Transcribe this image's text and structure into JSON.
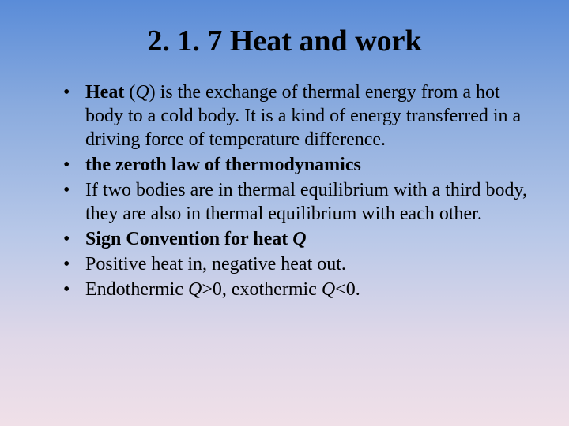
{
  "slide": {
    "title": "2. 1. 7 Heat and work",
    "bullets": [
      {
        "segments": [
          {
            "text": "Heat",
            "bold": true
          },
          {
            "text": " ("
          },
          {
            "text": "Q",
            "italic": true
          },
          {
            "text": ") is the exchange of thermal energy from a hot body to a cold body. It is a kind of energy transferred in a driving force of temperature difference."
          }
        ]
      },
      {
        "segments": [
          {
            "text": "the zeroth law of thermodynamics",
            "bold": true
          }
        ]
      },
      {
        "segments": [
          {
            "text": "If two bodies are in thermal equilibrium with a third body, they are also in thermal equilibrium with each other."
          }
        ]
      },
      {
        "segments": [
          {
            "text": "Sign Convention for heat    ",
            "bold": true
          },
          {
            "text": "Q",
            "italic": true,
            "bold": true
          }
        ]
      },
      {
        "segments": [
          {
            "text": "Positive heat in, negative heat out."
          }
        ]
      },
      {
        "segments": [
          {
            "text": "Endothermic "
          },
          {
            "text": "Q",
            "italic": true
          },
          {
            "text": ">0, exothermic "
          },
          {
            "text": "Q",
            "italic": true
          },
          {
            "text": "<0."
          }
        ]
      }
    ]
  },
  "style": {
    "background_gradient": [
      "#5a8cd8",
      "#8aabde",
      "#b8c8e8",
      "#e0d8e8",
      "#f0e0e8"
    ],
    "title_fontsize": 38,
    "body_fontsize": 24,
    "font_family": "Times New Roman",
    "text_color": "#000000",
    "slide_width": 720,
    "slide_height": 540
  }
}
